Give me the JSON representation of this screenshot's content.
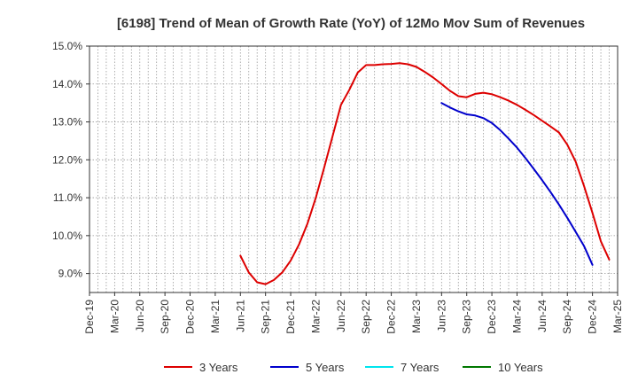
{
  "chart_data": {
    "type": "line",
    "title": "[6198]  Trend of Mean of Growth Rate (YoY) of 12Mo Mov Sum of Revenues",
    "xlabel": "",
    "ylabel": "",
    "x_ticks": [
      "Dec-19",
      "Mar-20",
      "Jun-20",
      "Sep-20",
      "Dec-20",
      "Mar-21",
      "Jun-21",
      "Sep-21",
      "Dec-21",
      "Mar-22",
      "Jun-22",
      "Sep-22",
      "Dec-22",
      "Mar-23",
      "Jun-23",
      "Sep-23",
      "Dec-23",
      "Mar-24",
      "Jun-24",
      "Sep-24",
      "Dec-24",
      "Mar-25"
    ],
    "y_ticks": [
      "9.0%",
      "10.0%",
      "11.0%",
      "12.0%",
      "13.0%",
      "14.0%",
      "15.0%"
    ],
    "y_tick_values": [
      9,
      10,
      11,
      12,
      13,
      14,
      15
    ],
    "xlim": [
      0,
      63
    ],
    "ylim": [
      8.5,
      15.0
    ],
    "grid": true,
    "legend_position": "bottom",
    "series": [
      {
        "name": "3 Years",
        "color": "#dd0000",
        "points": [
          [
            18,
            9.47
          ],
          [
            19,
            9.03
          ],
          [
            20,
            8.77
          ],
          [
            21,
            8.72
          ],
          [
            22,
            8.83
          ],
          [
            23,
            9.03
          ],
          [
            24,
            9.34
          ],
          [
            25,
            9.77
          ],
          [
            26,
            10.32
          ],
          [
            27,
            11.0
          ],
          [
            28,
            11.8
          ],
          [
            29,
            12.62
          ],
          [
            30,
            13.45
          ],
          [
            31,
            13.85
          ],
          [
            32,
            14.3
          ],
          [
            33,
            14.5
          ],
          [
            34,
            14.5
          ],
          [
            35,
            14.52
          ],
          [
            36,
            14.53
          ],
          [
            37,
            14.55
          ],
          [
            38,
            14.52
          ],
          [
            39,
            14.45
          ],
          [
            40,
            14.32
          ],
          [
            41,
            14.17
          ],
          [
            42,
            14.0
          ],
          [
            43,
            13.82
          ],
          [
            44,
            13.68
          ],
          [
            45,
            13.65
          ],
          [
            46,
            13.74
          ],
          [
            47,
            13.77
          ],
          [
            48,
            13.73
          ],
          [
            49,
            13.65
          ],
          [
            50,
            13.56
          ],
          [
            51,
            13.45
          ],
          [
            52,
            13.32
          ],
          [
            53,
            13.18
          ],
          [
            54,
            13.03
          ],
          [
            55,
            12.88
          ],
          [
            56,
            12.72
          ],
          [
            57,
            12.4
          ],
          [
            58,
            11.95
          ],
          [
            59,
            11.3
          ],
          [
            60,
            10.6
          ],
          [
            61,
            9.85
          ],
          [
            62,
            9.37
          ]
        ]
      },
      {
        "name": "5 Years",
        "color": "#0000cc",
        "points": [
          [
            42,
            13.5
          ],
          [
            43,
            13.38
          ],
          [
            44,
            13.28
          ],
          [
            45,
            13.2
          ],
          [
            46,
            13.17
          ],
          [
            47,
            13.1
          ],
          [
            48,
            12.97
          ],
          [
            49,
            12.78
          ],
          [
            50,
            12.56
          ],
          [
            51,
            12.32
          ],
          [
            52,
            12.05
          ],
          [
            53,
            11.76
          ],
          [
            54,
            11.46
          ],
          [
            55,
            11.15
          ],
          [
            56,
            10.82
          ],
          [
            57,
            10.47
          ],
          [
            58,
            10.1
          ],
          [
            59,
            9.72
          ],
          [
            60,
            9.23
          ]
        ]
      },
      {
        "name": "7 Years",
        "color": "#00e5ee",
        "points": []
      },
      {
        "name": "10 Years",
        "color": "#007700",
        "points": []
      }
    ]
  }
}
